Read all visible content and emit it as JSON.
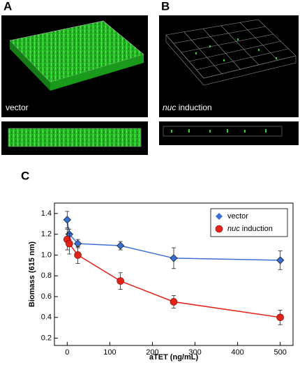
{
  "panels": {
    "a": {
      "label": "A",
      "caption": "vector"
    },
    "b": {
      "label": "B",
      "caption": "nuc induction"
    }
  },
  "chart_data": {
    "type": "line",
    "panel_label": "C",
    "x_label": "aTET (ng/mL)",
    "y_label": "Biomass (615 nm)",
    "x": [
      0,
      5,
      25,
      125,
      250,
      500
    ],
    "series": [
      {
        "name": "vector",
        "color": "#3a6fd6",
        "marker": "diamond",
        "values": [
          1.34,
          1.2,
          1.11,
          1.09,
          0.97,
          0.95
        ],
        "errors": [
          0.08,
          0.05,
          0.04,
          0.04,
          0.1,
          0.09
        ]
      },
      {
        "name": "nuc induction",
        "color": "#e2231a",
        "marker": "circle",
        "values": [
          1.15,
          1.11,
          1.0,
          0.75,
          0.55,
          0.4
        ],
        "errors": [
          0.1,
          0.1,
          0.08,
          0.08,
          0.06,
          0.07
        ]
      }
    ],
    "xlim": [
      -30,
      530
    ],
    "ylim": [
      0.13,
      1.5
    ],
    "xticks": [
      0,
      100,
      200,
      300,
      400,
      500
    ],
    "yticks": [
      0.2,
      0.4,
      0.6,
      0.8,
      {
        "value": 1,
        "label": "1.0"
      },
      1.2,
      1.4
    ],
    "legend": "upper right"
  }
}
